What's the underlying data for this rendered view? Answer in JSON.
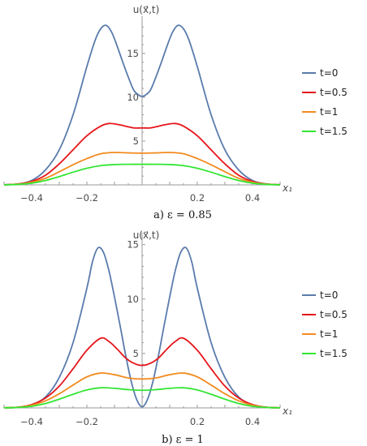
{
  "chart_data": [
    {
      "type": "line",
      "caption": "a) ε = 0.85",
      "ylabel": "u(x⃗,t)",
      "xlabel": "x₁",
      "xlim": [
        -0.5,
        0.5
      ],
      "ylim": [
        0,
        18.5
      ],
      "xticks": [
        -0.4,
        -0.2,
        0.2,
        0.4
      ],
      "xtick_labels": [
        "-0.4",
        "-0.2",
        "0.2",
        "0.4"
      ],
      "yticks": [
        5,
        10,
        15
      ],
      "ytick_labels": [
        "5",
        "10",
        "15"
      ],
      "legend_position": "right",
      "series": [
        {
          "name": "t=0",
          "color": "#5a7bac",
          "x": [
            -0.5,
            -0.45,
            -0.4,
            -0.35,
            -0.3,
            -0.25,
            -0.2,
            -0.17,
            -0.15,
            -0.13,
            -0.11,
            -0.09,
            -0.07,
            -0.05,
            -0.03,
            -0.01,
            0.0,
            0.01,
            0.03,
            0.05,
            0.07,
            0.09,
            0.11,
            0.13,
            0.15,
            0.17,
            0.2,
            0.25,
            0.3,
            0.35,
            0.4,
            0.45,
            0.5
          ],
          "y": [
            0.02,
            0.1,
            0.5,
            1.7,
            4.0,
            8.0,
            13.5,
            16.5,
            17.8,
            18.2,
            17.4,
            15.8,
            14.0,
            12.3,
            10.8,
            10.2,
            10.1,
            10.2,
            10.8,
            12.3,
            14.0,
            15.8,
            17.4,
            18.2,
            17.8,
            16.5,
            13.5,
            8.0,
            4.0,
            1.7,
            0.5,
            0.1,
            0.02
          ]
        },
        {
          "name": "t=0.5",
          "color": "#e6161a",
          "x": [
            -0.5,
            -0.45,
            -0.4,
            -0.35,
            -0.3,
            -0.25,
            -0.2,
            -0.15,
            -0.12,
            -0.09,
            -0.06,
            -0.03,
            0.0,
            0.03,
            0.06,
            0.09,
            0.12,
            0.15,
            0.2,
            0.25,
            0.3,
            0.35,
            0.4,
            0.45,
            0.5
          ],
          "y": [
            0.01,
            0.1,
            0.4,
            1.1,
            2.4,
            4.0,
            5.6,
            6.7,
            7.0,
            6.9,
            6.7,
            6.5,
            6.5,
            6.5,
            6.7,
            6.9,
            7.0,
            6.7,
            5.6,
            4.0,
            2.4,
            1.1,
            0.4,
            0.1,
            0.01
          ]
        },
        {
          "name": "t=1",
          "color": "#f28b1f",
          "x": [
            -0.5,
            -0.45,
            -0.4,
            -0.35,
            -0.3,
            -0.25,
            -0.2,
            -0.15,
            -0.1,
            -0.05,
            0.0,
            0.05,
            0.1,
            0.15,
            0.2,
            0.25,
            0.3,
            0.35,
            0.4,
            0.45,
            0.5
          ],
          "y": [
            0.01,
            0.08,
            0.3,
            0.75,
            1.5,
            2.3,
            3.0,
            3.55,
            3.7,
            3.65,
            3.62,
            3.65,
            3.7,
            3.55,
            3.0,
            2.3,
            1.5,
            0.75,
            0.3,
            0.08,
            0.01
          ]
        },
        {
          "name": "t=1.5",
          "color": "#33e633",
          "x": [
            -0.5,
            -0.45,
            -0.4,
            -0.35,
            -0.3,
            -0.25,
            -0.2,
            -0.15,
            -0.1,
            -0.05,
            0.0,
            0.05,
            0.1,
            0.15,
            0.2,
            0.25,
            0.3,
            0.35,
            0.4,
            0.45,
            0.5
          ],
          "y": [
            0.01,
            0.05,
            0.2,
            0.5,
            0.95,
            1.45,
            1.9,
            2.2,
            2.32,
            2.35,
            2.35,
            2.35,
            2.32,
            2.2,
            1.9,
            1.45,
            0.95,
            0.5,
            0.2,
            0.05,
            0.01
          ]
        }
      ]
    },
    {
      "type": "line",
      "caption": "b) ε = 1",
      "ylabel": "u(x⃗,t)",
      "xlabel": "x₁",
      "xlim": [
        -0.5,
        0.5
      ],
      "ylim": [
        0,
        15.5
      ],
      "xticks": [
        -0.4,
        -0.2,
        0.2,
        0.4
      ],
      "xtick_labels": [
        "-0.4",
        "-0.2",
        "0.2",
        "0.4"
      ],
      "yticks": [
        5,
        10,
        15
      ],
      "ytick_labels": [
        "5",
        "10",
        "15"
      ],
      "legend_position": "right",
      "series": [
        {
          "name": "t=0",
          "color": "#5a7bac",
          "x": [
            -0.5,
            -0.45,
            -0.4,
            -0.35,
            -0.3,
            -0.25,
            -0.2,
            -0.18,
            -0.16,
            -0.14,
            -0.12,
            -0.1,
            -0.08,
            -0.06,
            -0.04,
            -0.02,
            0.0,
            0.02,
            0.04,
            0.06,
            0.08,
            0.1,
            0.12,
            0.14,
            0.16,
            0.18,
            0.2,
            0.25,
            0.3,
            0.35,
            0.4,
            0.45,
            0.5
          ],
          "y": [
            0.01,
            0.05,
            0.3,
            1.0,
            2.8,
            6.0,
            11.0,
            13.4,
            14.7,
            14.3,
            12.6,
            10.2,
            7.6,
            4.9,
            2.5,
            0.8,
            0.1,
            0.8,
            2.5,
            4.9,
            7.6,
            10.2,
            12.6,
            14.3,
            14.7,
            13.4,
            11.0,
            6.0,
            2.8,
            1.0,
            0.3,
            0.05,
            0.01
          ]
        },
        {
          "name": "t=0.5",
          "color": "#e6161a",
          "x": [
            -0.5,
            -0.45,
            -0.4,
            -0.35,
            -0.3,
            -0.25,
            -0.2,
            -0.15,
            -0.12,
            -0.09,
            -0.06,
            -0.03,
            0.0,
            0.03,
            0.06,
            0.09,
            0.12,
            0.15,
            0.2,
            0.25,
            0.3,
            0.35,
            0.4,
            0.45,
            0.5
          ],
          "y": [
            0.01,
            0.06,
            0.3,
            0.9,
            2.0,
            3.6,
            5.3,
            6.4,
            6.1,
            5.4,
            4.6,
            4.1,
            3.9,
            4.1,
            4.6,
            5.4,
            6.1,
            6.4,
            5.3,
            3.6,
            2.0,
            0.9,
            0.3,
            0.06,
            0.01
          ]
        },
        {
          "name": "t=1",
          "color": "#f28b1f",
          "x": [
            -0.5,
            -0.45,
            -0.4,
            -0.35,
            -0.3,
            -0.25,
            -0.2,
            -0.15,
            -0.1,
            -0.05,
            0.0,
            0.05,
            0.1,
            0.15,
            0.2,
            0.25,
            0.3,
            0.35,
            0.4,
            0.45,
            0.5
          ],
          "y": [
            0.01,
            0.05,
            0.25,
            0.65,
            1.3,
            2.1,
            2.85,
            3.2,
            3.05,
            2.75,
            2.65,
            2.75,
            3.05,
            3.2,
            2.85,
            2.1,
            1.3,
            0.65,
            0.25,
            0.05,
            0.01
          ]
        },
        {
          "name": "t=1.5",
          "color": "#33e633",
          "x": [
            -0.5,
            -0.45,
            -0.4,
            -0.35,
            -0.3,
            -0.25,
            -0.2,
            -0.15,
            -0.1,
            -0.05,
            0.0,
            0.05,
            0.1,
            0.15,
            0.2,
            0.25,
            0.3,
            0.35,
            0.4,
            0.45,
            0.5
          ],
          "y": [
            0.01,
            0.04,
            0.15,
            0.4,
            0.8,
            1.25,
            1.65,
            1.85,
            1.8,
            1.68,
            1.62,
            1.68,
            1.8,
            1.85,
            1.65,
            1.25,
            0.8,
            0.4,
            0.15,
            0.04,
            0.01
          ]
        }
      ]
    }
  ]
}
